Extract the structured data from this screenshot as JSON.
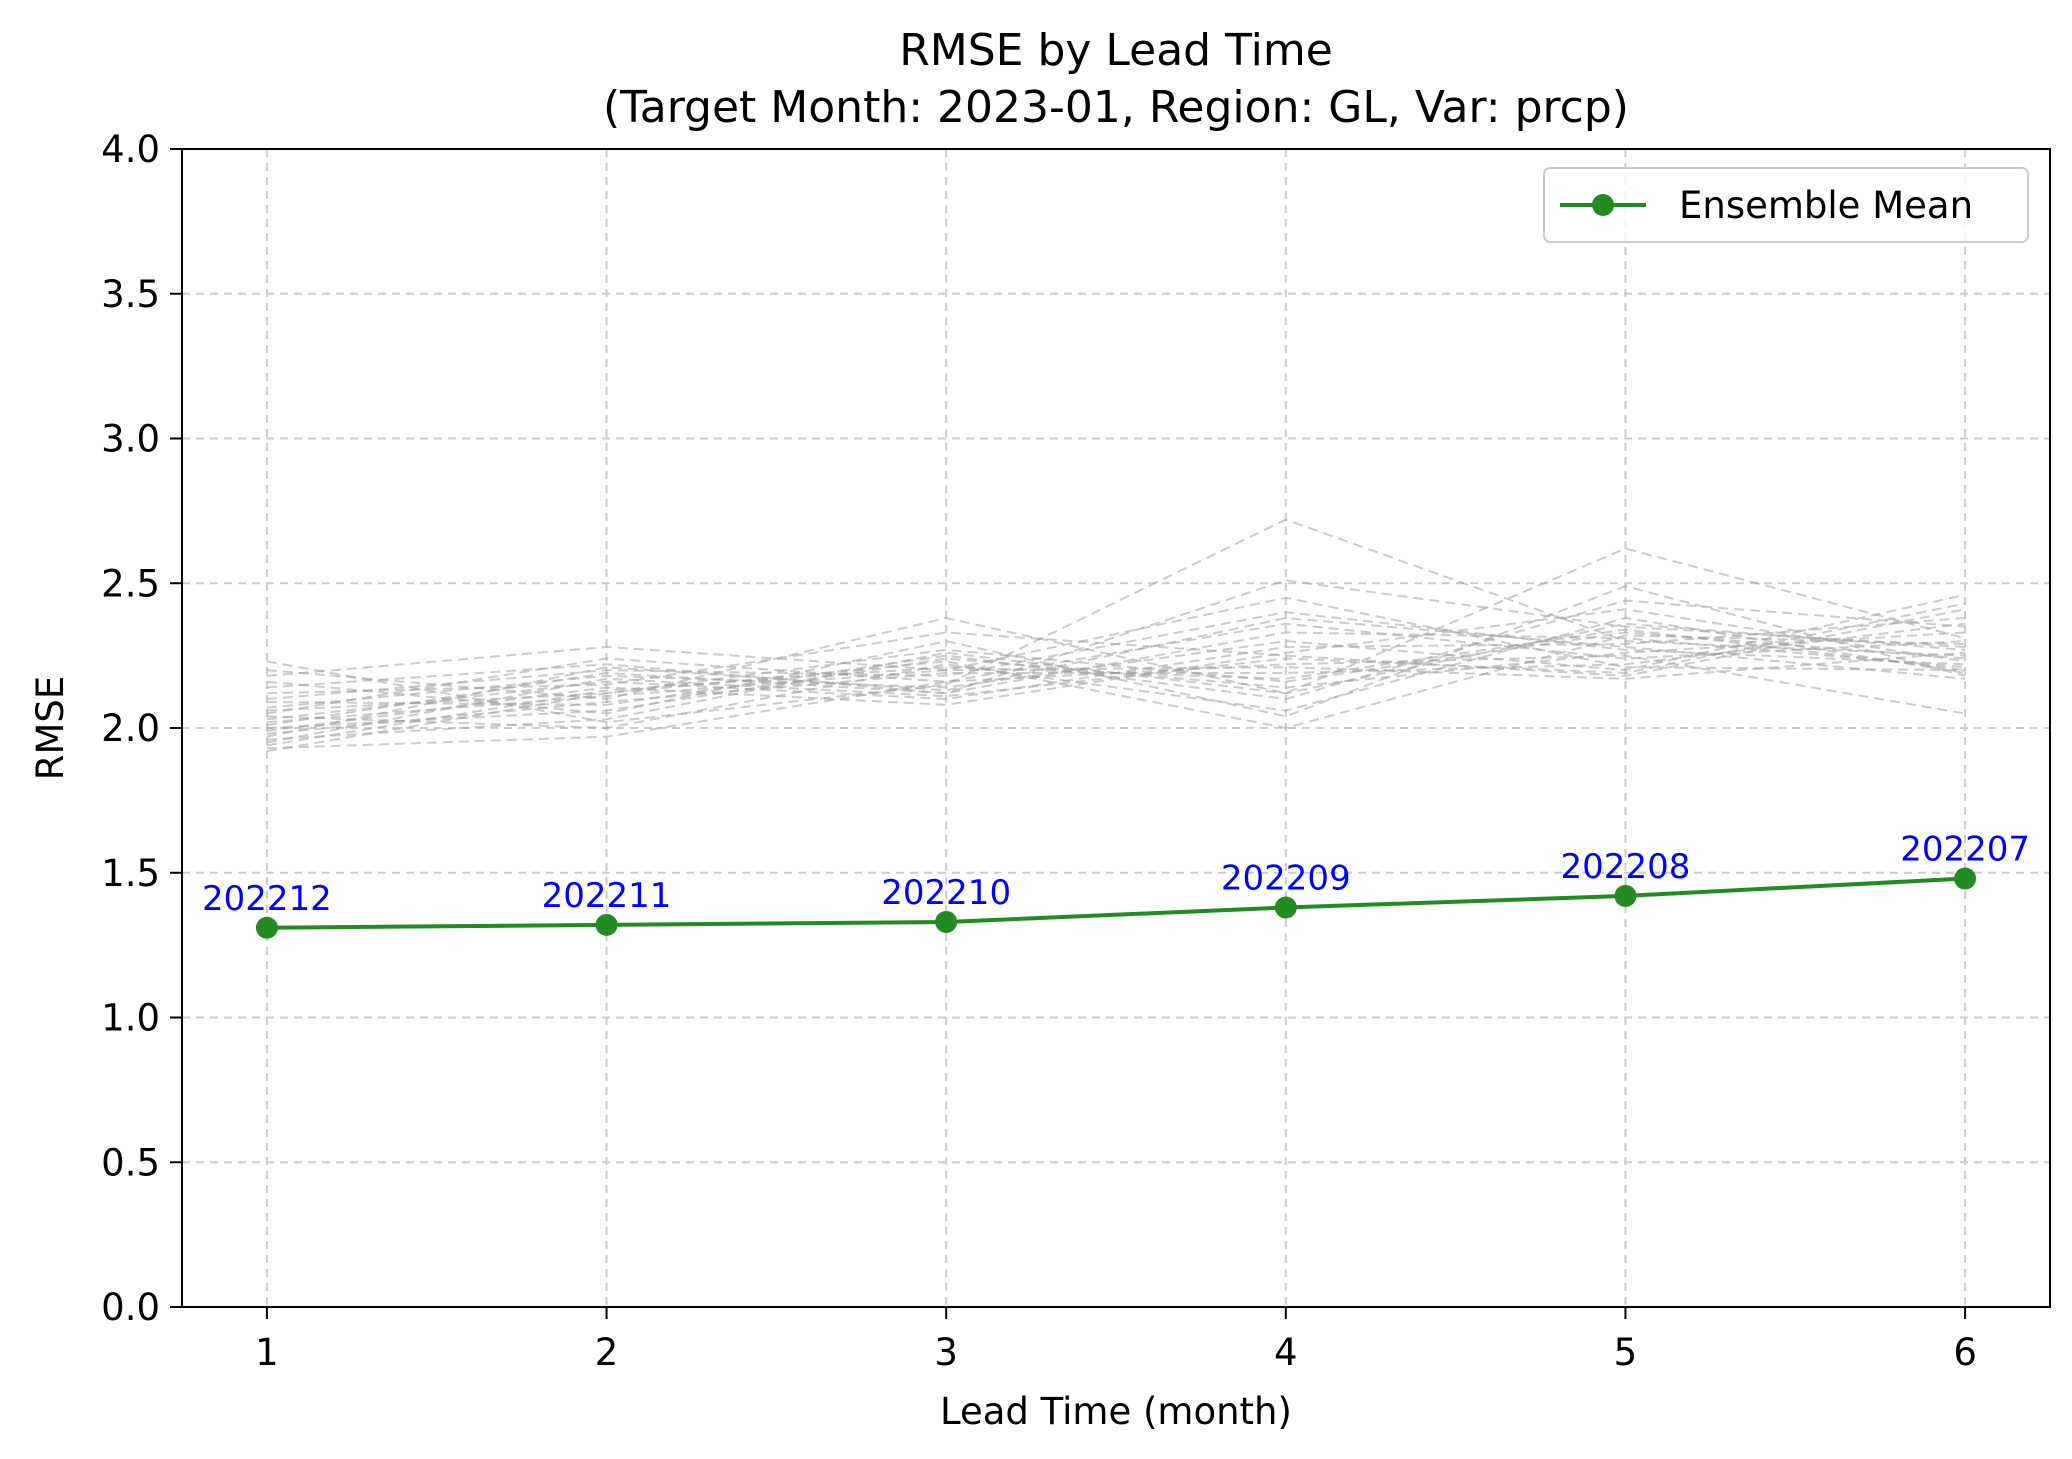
{
  "chart_data": {
    "type": "line",
    "title": "RMSE by Lead Time",
    "subtitle": "(Target Month: 2023-01, Region: GL, Var: prcp)",
    "xlabel": "Lead Time (month)",
    "ylabel": "RMSE",
    "xlim": [
      0.75,
      6.25
    ],
    "ylim": [
      0.0,
      4.0
    ],
    "x_ticks": [
      1,
      2,
      3,
      4,
      5,
      6
    ],
    "y_ticks": [
      0.0,
      0.5,
      1.0,
      1.5,
      2.0,
      2.5,
      3.0,
      3.5,
      4.0
    ],
    "y_tick_labels": [
      "0.0",
      "0.5",
      "1.0",
      "1.5",
      "2.0",
      "2.5",
      "3.0",
      "3.5",
      "4.0"
    ],
    "grid": true,
    "legend_position": "top-right",
    "series": [
      {
        "name": "Ensemble Mean",
        "color": "#228b22",
        "x": [
          1,
          2,
          3,
          4,
          5,
          6
        ],
        "y": [
          1.31,
          1.32,
          1.33,
          1.38,
          1.42,
          1.48
        ],
        "point_labels": [
          "202212",
          "202211",
          "202210",
          "202209",
          "202208",
          "202207"
        ],
        "point_label_color": "#0000ff"
      }
    ],
    "member_lines": {
      "color": "#a0a0a0",
      "style": "dashed",
      "x": [
        1,
        2,
        3,
        4,
        5,
        6
      ],
      "values": [
        [
          2.23,
          2.02,
          2.15,
          2.72,
          2.3,
          2.25
        ],
        [
          2.2,
          2.1,
          2.38,
          2.12,
          2.62,
          2.31
        ],
        [
          2.18,
          2.28,
          2.2,
          2.45,
          2.21,
          2.2
        ],
        [
          2.16,
          2.05,
          2.3,
          2.04,
          2.49,
          2.18
        ],
        [
          2.14,
          2.22,
          2.12,
          2.51,
          2.35,
          2.28
        ],
        [
          2.12,
          2.15,
          2.33,
          2.25,
          2.18,
          2.41
        ],
        [
          2.1,
          2.2,
          2.18,
          2.4,
          2.27,
          2.22
        ],
        [
          2.09,
          2.08,
          2.25,
          2.1,
          2.44,
          2.35
        ],
        [
          2.07,
          2.18,
          2.14,
          2.3,
          2.2,
          2.46
        ],
        [
          2.06,
          2.12,
          2.27,
          2.16,
          2.33,
          2.24
        ],
        [
          2.05,
          2.24,
          2.16,
          2.36,
          2.24,
          2.3
        ],
        [
          2.04,
          2.0,
          2.22,
          2.06,
          2.38,
          2.19
        ],
        [
          2.03,
          2.16,
          2.1,
          2.28,
          2.29,
          2.38
        ],
        [
          2.02,
          2.11,
          2.2,
          2.21,
          2.17,
          2.26
        ],
        [
          2.01,
          2.19,
          2.12,
          2.33,
          2.31,
          2.21
        ],
        [
          2.0,
          2.06,
          2.24,
          2.14,
          2.26,
          2.33
        ],
        [
          1.99,
          2.14,
          2.08,
          2.26,
          2.41,
          2.23
        ],
        [
          1.98,
          2.09,
          2.19,
          2.19,
          2.22,
          2.36
        ],
        [
          1.97,
          2.21,
          2.13,
          2.38,
          2.28,
          2.17
        ],
        [
          1.96,
          2.03,
          2.26,
          2.12,
          2.36,
          2.27
        ],
        [
          1.95,
          2.17,
          2.11,
          2.24,
          2.19,
          2.43
        ],
        [
          1.94,
          2.13,
          2.21,
          2.17,
          2.34,
          2.2
        ],
        [
          1.93,
          1.97,
          2.16,
          2.22,
          2.25,
          2.05
        ],
        [
          1.92,
          2.12,
          2.23,
          2.0,
          2.32,
          2.29
        ]
      ]
    }
  }
}
